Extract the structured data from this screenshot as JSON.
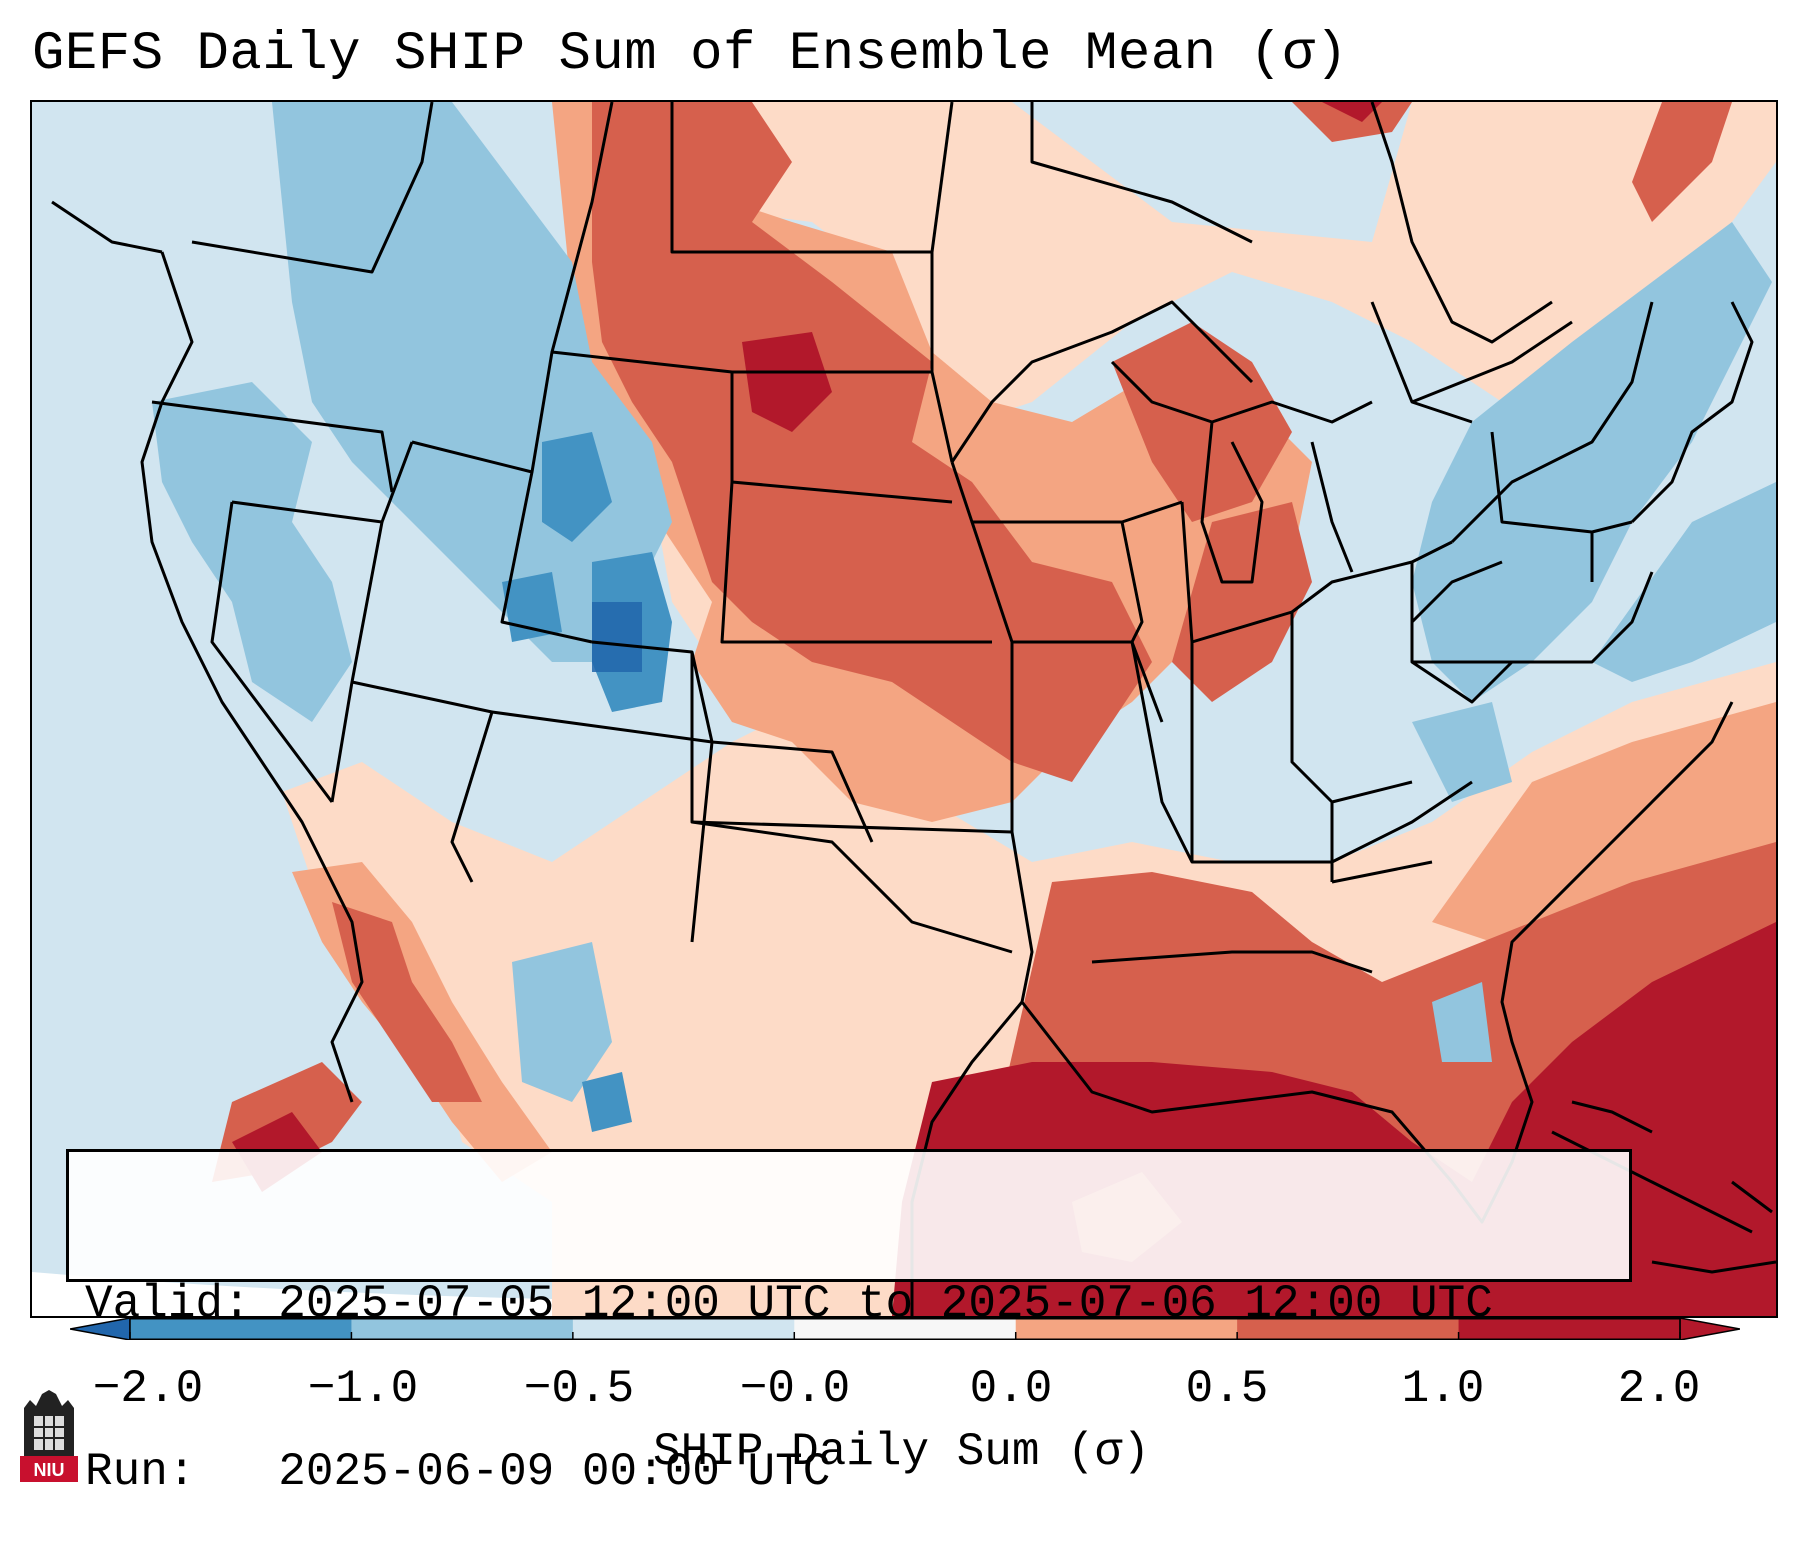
{
  "title": "GEFS Daily SHIP Sum of Ensemble Mean (σ)",
  "info": {
    "valid_line": "Valid: 2025-07-05 12:00 UTC to 2025-07-06 12:00 UTC",
    "run_line": "Run:   2025-06-09 00:00 UTC"
  },
  "colorbar": {
    "label": "SHIP Daily Sum (σ)",
    "ticks": [
      "−2.0",
      "−1.0",
      "−0.5",
      "−0.0",
      "0.0",
      "0.5",
      "1.0",
      "2.0"
    ],
    "colors": [
      "#4393c3",
      "#92c5de",
      "#d1e5f0",
      "#f7f7f7",
      "#fddbc7",
      "#f4a582",
      "#d6604d",
      "#b2182b"
    ],
    "extend_low_color": "#2166ac",
    "extend_high_color": "#b2182b"
  },
  "logo": {
    "text": "NIU",
    "color": "#c8102e"
  }
}
